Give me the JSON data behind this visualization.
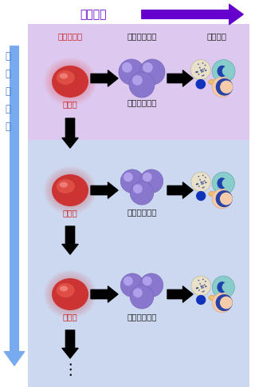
{
  "title_top": "多分化能",
  "title_left": "自己複製能",
  "col_label_0": "造血幹細胞",
  "col_label_1": "血液前駅細胞",
  "col_label_2": "血液細胞",
  "row_label": "静止期",
  "cycle_label": "増殖サイクル",
  "dots": "⋮",
  "top_bg": "#ddc8f0",
  "bottom_bg": "#ccd8f0",
  "arrow_h_color": "#6600cc",
  "arrow_v_color": "#77aaee",
  "col0_text_color": "#cc2222",
  "text_color": "#222222",
  "fig_bg": "#ffffff"
}
